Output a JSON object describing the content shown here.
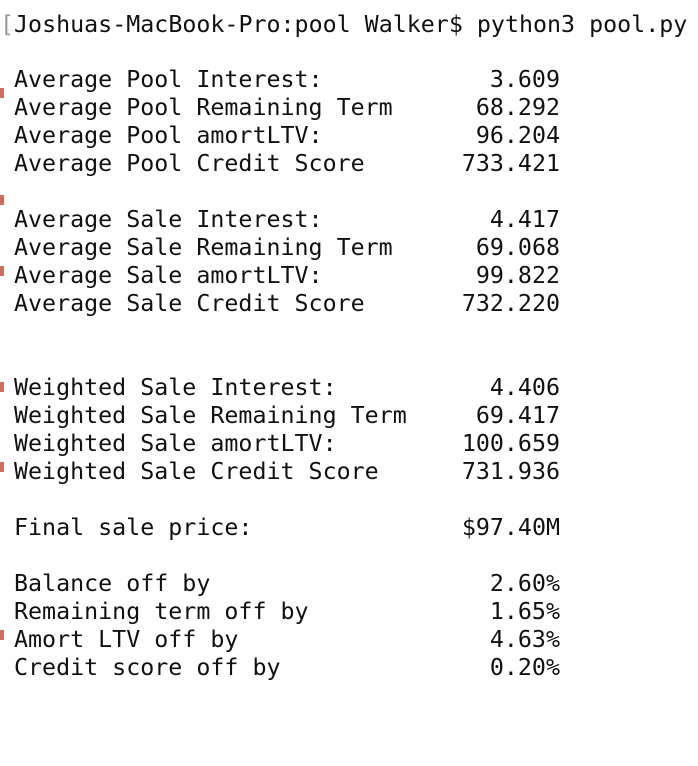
{
  "terminal": {
    "prompt_bracket": "[",
    "prompt": "Joshuas-MacBook-Pro:pool Walker$ python3 pool.py"
  },
  "groups": [
    {
      "rows": [
        {
          "label": "Average Pool Interest:",
          "value": "3.609"
        },
        {
          "label": "Average Pool Remaining Term",
          "value": "68.292"
        },
        {
          "label": "Average Pool amortLTV:",
          "value": "96.204"
        },
        {
          "label": "Average Pool Credit Score",
          "value": "733.421"
        }
      ]
    },
    {
      "rows": [
        {
          "label": "Average Sale Interest:",
          "value": "4.417"
        },
        {
          "label": "Average Sale Remaining Term",
          "value": "69.068"
        },
        {
          "label": "Average Sale amortLTV:",
          "value": "99.822"
        },
        {
          "label": "Average Sale Credit Score",
          "value": "732.220"
        }
      ]
    },
    {
      "rows": [
        {
          "label": "Weighted Sale Interest:",
          "value": "4.406"
        },
        {
          "label": "Weighted Sale Remaining Term",
          "value": "69.417"
        },
        {
          "label": "Weighted Sale amortLTV:",
          "value": "100.659"
        },
        {
          "label": "Weighted Sale Credit Score",
          "value": "731.936"
        }
      ]
    },
    {
      "rows": [
        {
          "label": "Final sale price:",
          "value": "$97.40M"
        }
      ]
    },
    {
      "rows": [
        {
          "label": "Balance off by",
          "value": "2.60%"
        },
        {
          "label": "Remaining term off by",
          "value": "1.65%"
        },
        {
          "label": "Amort LTV off by",
          "value": "4.63%"
        },
        {
          "label": "Credit score off by",
          "value": "0.20%"
        }
      ]
    }
  ],
  "colors": {
    "background": "#ffffff",
    "text": "#111111",
    "edge_marks": "#c0392b"
  }
}
